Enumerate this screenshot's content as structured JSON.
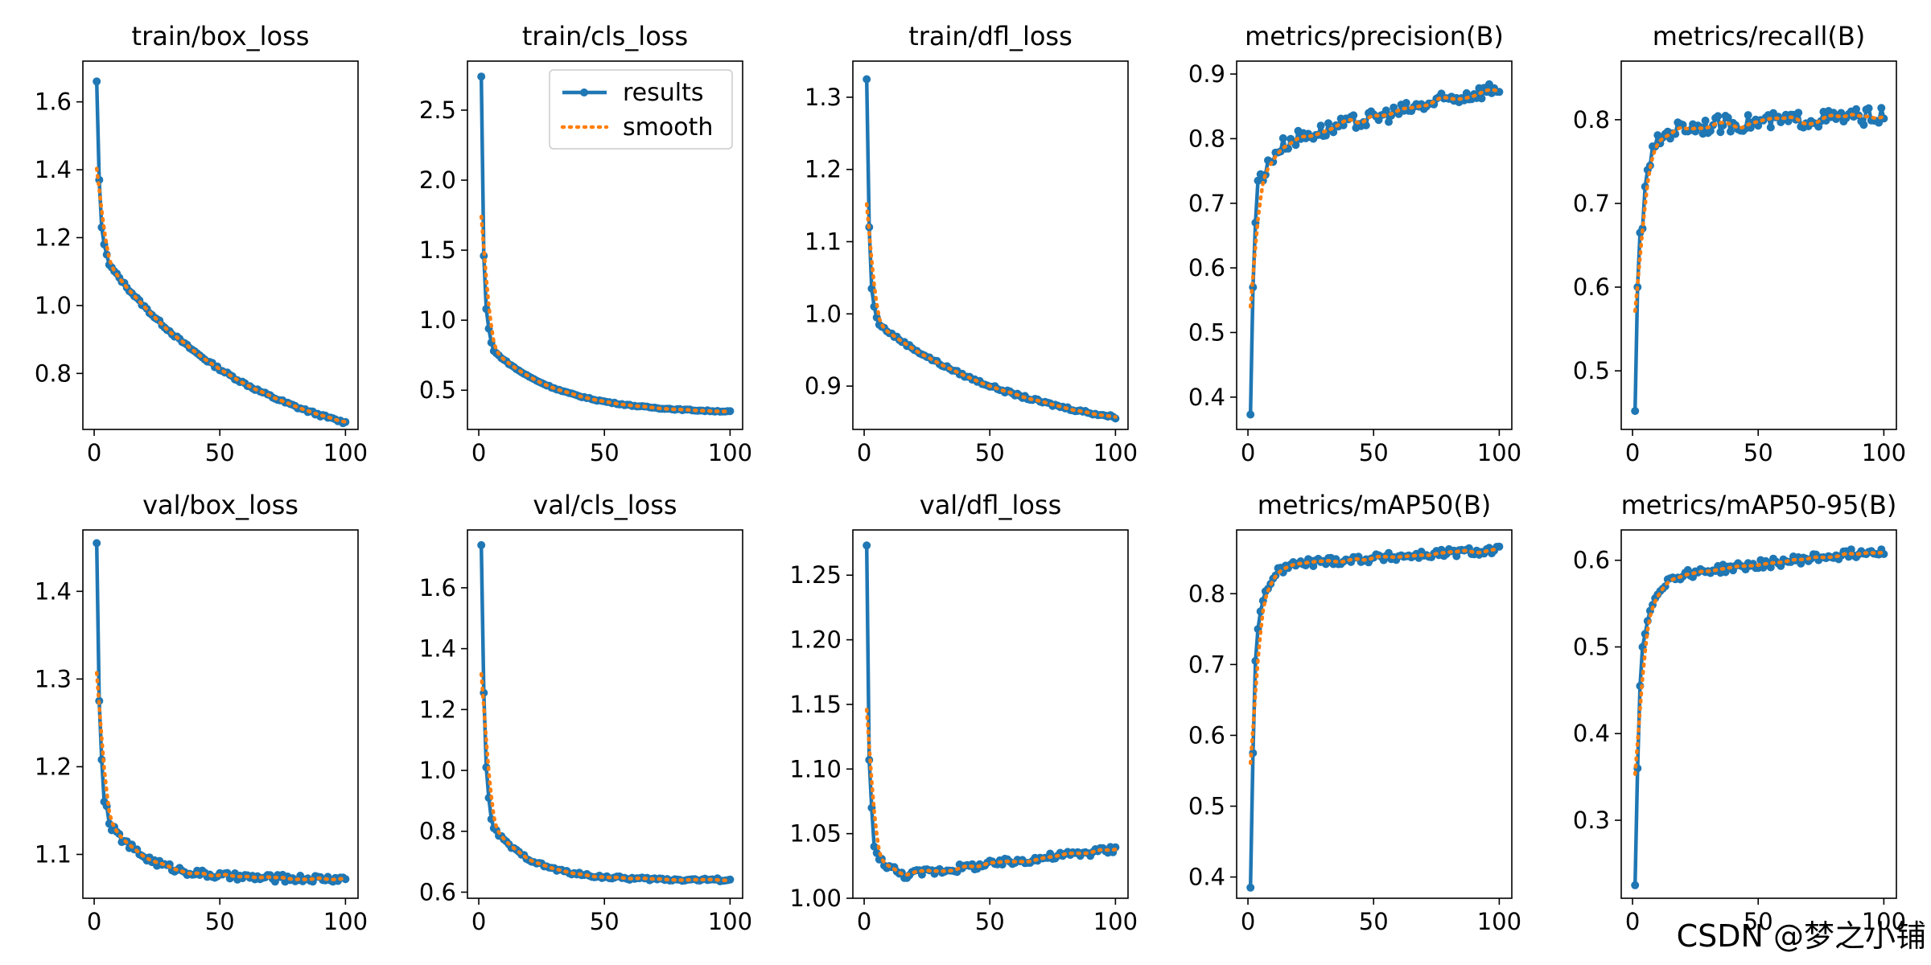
{
  "watermark": "CSDN @梦之小铺",
  "colors": {
    "results": "#1f77b4",
    "smooth": "#ff7f0e",
    "axes": "#000000",
    "background": "#ffffff"
  },
  "legend": {
    "results_label": "results",
    "smooth_label": "smooth",
    "placement": "top-right",
    "panel": "train/cls_loss"
  },
  "chart_data": [
    {
      "type": "line",
      "title": "train/box_loss",
      "xlim": [
        -4.5,
        105
      ],
      "ylim": [
        0.635,
        1.72
      ],
      "xticks": [
        0,
        50,
        100
      ],
      "yticks": [
        0.8,
        1.0,
        1.2,
        1.4,
        1.6
      ],
      "tick_decimals": 1,
      "shape": "decay",
      "start": [
        1.66,
        1.37,
        1.23,
        1.18,
        1.15,
        1.12
      ],
      "end": 0.655,
      "k": 0.9,
      "noise": 0.004,
      "smooth_offset": -0.005
    },
    {
      "type": "line",
      "title": "train/cls_loss",
      "xlim": [
        -4.5,
        105
      ],
      "ylim": [
        0.22,
        2.85
      ],
      "xticks": [
        0,
        50,
        100
      ],
      "yticks": [
        0.5,
        1.0,
        1.5,
        2.0,
        2.5
      ],
      "tick_decimals": 1,
      "shape": "decay",
      "start": [
        2.74,
        1.46,
        1.08,
        0.94,
        0.84,
        0.78
      ],
      "end": 0.335,
      "k": 3.5,
      "noise": 0.004,
      "smooth_offset": 0.01
    },
    {
      "type": "line",
      "title": "train/dfl_loss",
      "xlim": [
        -4.5,
        105
      ],
      "ylim": [
        0.84,
        1.35
      ],
      "xticks": [
        0,
        50,
        100
      ],
      "yticks": [
        0.9,
        1.0,
        1.1,
        1.2,
        1.3
      ],
      "tick_decimals": 1,
      "shape": "decay",
      "start": [
        1.325,
        1.12,
        1.035,
        1.01,
        0.995,
        0.985
      ],
      "end": 0.857,
      "k": 1.2,
      "noise": 0.002,
      "smooth_offset": -0.002
    },
    {
      "type": "line",
      "title": "metrics/precision(B)",
      "xlim": [
        -4.5,
        105
      ],
      "ylim": [
        0.35,
        0.92
      ],
      "xticks": [
        0,
        50,
        100
      ],
      "yticks": [
        0.4,
        0.5,
        0.6,
        0.7,
        0.8,
        0.9
      ],
      "tick_decimals": 1,
      "shape": "rise",
      "start": [
        0.373,
        0.57,
        0.67,
        0.735,
        0.745,
        0.735
      ],
      "base": 0.79,
      "final": 0.88,
      "noise": 0.012,
      "smooth_offset": -0.01
    },
    {
      "type": "line",
      "title": "metrics/recall(B)",
      "xlim": [
        -4.5,
        105
      ],
      "ylim": [
        0.43,
        0.87
      ],
      "xticks": [
        0,
        50,
        100
      ],
      "yticks": [
        0.5,
        0.6,
        0.7,
        0.8
      ],
      "tick_decimals": 1,
      "shape": "rise",
      "start": [
        0.452,
        0.6,
        0.665,
        0.67,
        0.72,
        0.74
      ],
      "base": 0.79,
      "final": 0.805,
      "noise": 0.01,
      "smooth_offset": -0.005
    },
    {
      "type": "line",
      "title": "val/box_loss",
      "xlim": [
        -4.5,
        105
      ],
      "ylim": [
        1.05,
        1.47
      ],
      "xticks": [
        0,
        50,
        100
      ],
      "yticks": [
        1.1,
        1.2,
        1.3,
        1.4
      ],
      "tick_decimals": 1,
      "shape": "decay",
      "start": [
        1.455,
        1.275,
        1.208,
        1.16,
        1.155,
        1.135
      ],
      "end": 1.072,
      "k": 6,
      "noise": 0.004,
      "smooth_offset": 0.003
    },
    {
      "type": "line",
      "title": "val/cls_loss",
      "xlim": [
        -4.5,
        105
      ],
      "ylim": [
        0.58,
        1.79
      ],
      "xticks": [
        0,
        50,
        100
      ],
      "yticks": [
        0.6,
        0.8,
        1.0,
        1.2,
        1.4,
        1.6
      ],
      "tick_decimals": 1,
      "shape": "decay",
      "start": [
        1.74,
        1.255,
        1.01,
        0.91,
        0.84,
        0.81
      ],
      "end": 0.64,
      "k": 6,
      "noise": 0.005,
      "smooth_offset": 0.005
    },
    {
      "type": "line",
      "title": "val/dfl_loss",
      "xlim": [
        -4.5,
        105
      ],
      "ylim": [
        1.0,
        1.285
      ],
      "xticks": [
        0,
        50,
        100
      ],
      "yticks": [
        1.0,
        1.05,
        1.1,
        1.15,
        1.2,
        1.25
      ],
      "tick_decimals": 2,
      "shape": "valley",
      "start": [
        1.273,
        1.107,
        1.07,
        1.04,
        1.035,
        1.03
      ],
      "min": 1.018,
      "min_at": 15,
      "final": 1.038,
      "noise": 0.003,
      "smooth_offset": 0.001
    },
    {
      "type": "line",
      "title": "metrics/mAP50(B)",
      "xlim": [
        -4.5,
        105
      ],
      "ylim": [
        0.37,
        0.89
      ],
      "xticks": [
        0,
        50,
        100
      ],
      "yticks": [
        0.4,
        0.5,
        0.6,
        0.7,
        0.8
      ],
      "tick_decimals": 1,
      "shape": "rise",
      "start": [
        0.385,
        0.575,
        0.705,
        0.75,
        0.775,
        0.79
      ],
      "base": 0.84,
      "final": 0.862,
      "noise": 0.006,
      "smooth_offset": -0.005
    },
    {
      "type": "line",
      "title": "metrics/mAP50-95(B)",
      "xlim": [
        -4.5,
        105
      ],
      "ylim": [
        0.21,
        0.635
      ],
      "xticks": [
        0,
        50,
        100
      ],
      "yticks": [
        0.3,
        0.4,
        0.5,
        0.6
      ],
      "tick_decimals": 1,
      "shape": "rise",
      "start": [
        0.225,
        0.36,
        0.455,
        0.5,
        0.515,
        0.53
      ],
      "base": 0.58,
      "final": 0.612,
      "noise": 0.005,
      "smooth_offset": -0.003
    }
  ]
}
